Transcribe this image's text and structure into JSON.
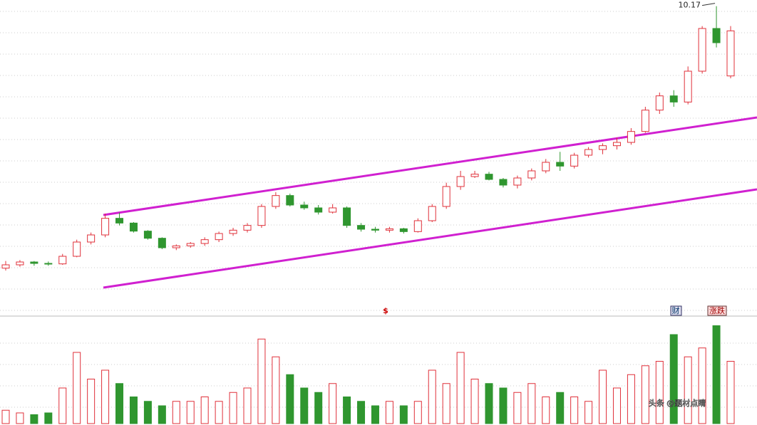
{
  "chart_data": [
    {
      "type": "candlestick",
      "open": [
        4.65,
        4.72,
        4.78,
        4.75,
        4.74,
        4.9,
        5.2,
        5.35,
        5.7,
        5.6,
        5.43,
        5.28,
        5.08,
        5.12,
        5.17,
        5.25,
        5.38,
        5.45,
        5.55,
        5.95,
        6.18,
        5.98,
        5.92,
        5.83,
        5.92,
        5.55,
        5.47,
        5.45,
        5.48,
        5.42,
        5.65,
        5.95,
        6.37,
        6.58,
        6.63,
        6.52,
        6.4,
        6.55,
        6.7,
        6.88,
        6.8,
        7.03,
        7.15,
        7.23,
        7.3,
        7.53,
        7.98,
        8.28,
        8.15,
        8.8,
        9.7,
        8.7
      ],
      "high": [
        4.8,
        4.82,
        4.8,
        4.79,
        4.95,
        5.25,
        5.4,
        5.8,
        5.82,
        5.62,
        5.45,
        5.3,
        5.15,
        5.2,
        5.3,
        5.42,
        5.5,
        5.6,
        6.0,
        6.25,
        6.22,
        6.05,
        5.98,
        6.0,
        5.95,
        5.6,
        5.52,
        5.52,
        5.5,
        5.7,
        6.0,
        6.45,
        6.7,
        6.7,
        6.68,
        6.55,
        6.6,
        6.75,
        6.95,
        7.1,
        7.08,
        7.2,
        7.28,
        7.4,
        7.6,
        8.05,
        8.35,
        8.4,
        8.9,
        9.75,
        10.17,
        9.75
      ],
      "low": [
        4.6,
        4.68,
        4.7,
        4.7,
        4.72,
        4.88,
        5.15,
        5.3,
        5.55,
        5.4,
        5.25,
        5.05,
        5.03,
        5.08,
        5.12,
        5.2,
        5.33,
        5.4,
        5.5,
        5.9,
        5.95,
        5.88,
        5.78,
        5.8,
        5.5,
        5.42,
        5.4,
        5.4,
        5.38,
        5.4,
        5.62,
        5.9,
        6.3,
        6.55,
        6.5,
        6.35,
        6.33,
        6.5,
        6.65,
        6.7,
        6.75,
        6.98,
        7.05,
        7.15,
        7.25,
        7.5,
        7.9,
        8.05,
        8.1,
        8.75,
        9.3,
        8.65
      ],
      "close": [
        4.72,
        4.78,
        4.75,
        4.74,
        4.9,
        5.2,
        5.35,
        5.7,
        5.6,
        5.43,
        5.28,
        5.08,
        5.12,
        5.17,
        5.25,
        5.38,
        5.45,
        5.55,
        5.95,
        6.18,
        5.98,
        5.92,
        5.83,
        5.92,
        5.55,
        5.47,
        5.45,
        5.48,
        5.42,
        5.65,
        5.95,
        6.37,
        6.58,
        6.63,
        6.52,
        6.4,
        6.55,
        6.7,
        6.88,
        6.8,
        7.03,
        7.15,
        7.23,
        7.3,
        7.53,
        7.98,
        8.28,
        8.15,
        8.8,
        9.7,
        9.4,
        9.65
      ],
      "ylim": [
        3.7,
        10.3
      ],
      "up_color": "#e0303a",
      "down_color": "#2f962f"
    },
    {
      "type": "bar",
      "values": [
        15,
        12,
        10,
        12,
        40,
        80,
        50,
        60,
        45,
        30,
        25,
        20,
        25,
        25,
        30,
        25,
        35,
        40,
        95,
        75,
        55,
        40,
        35,
        45,
        30,
        25,
        20,
        25,
        20,
        25,
        60,
        45,
        80,
        50,
        45,
        40,
        35,
        45,
        30,
        35,
        30,
        25,
        60,
        40,
        55,
        65,
        70,
        100,
        75,
        85,
        110,
        70
      ],
      "ylim": [
        0,
        120
      ]
    }
  ],
  "markers": [
    "$",
    "财",
    "涨跌"
  ],
  "watermark": "头条 @题材点睛"
}
